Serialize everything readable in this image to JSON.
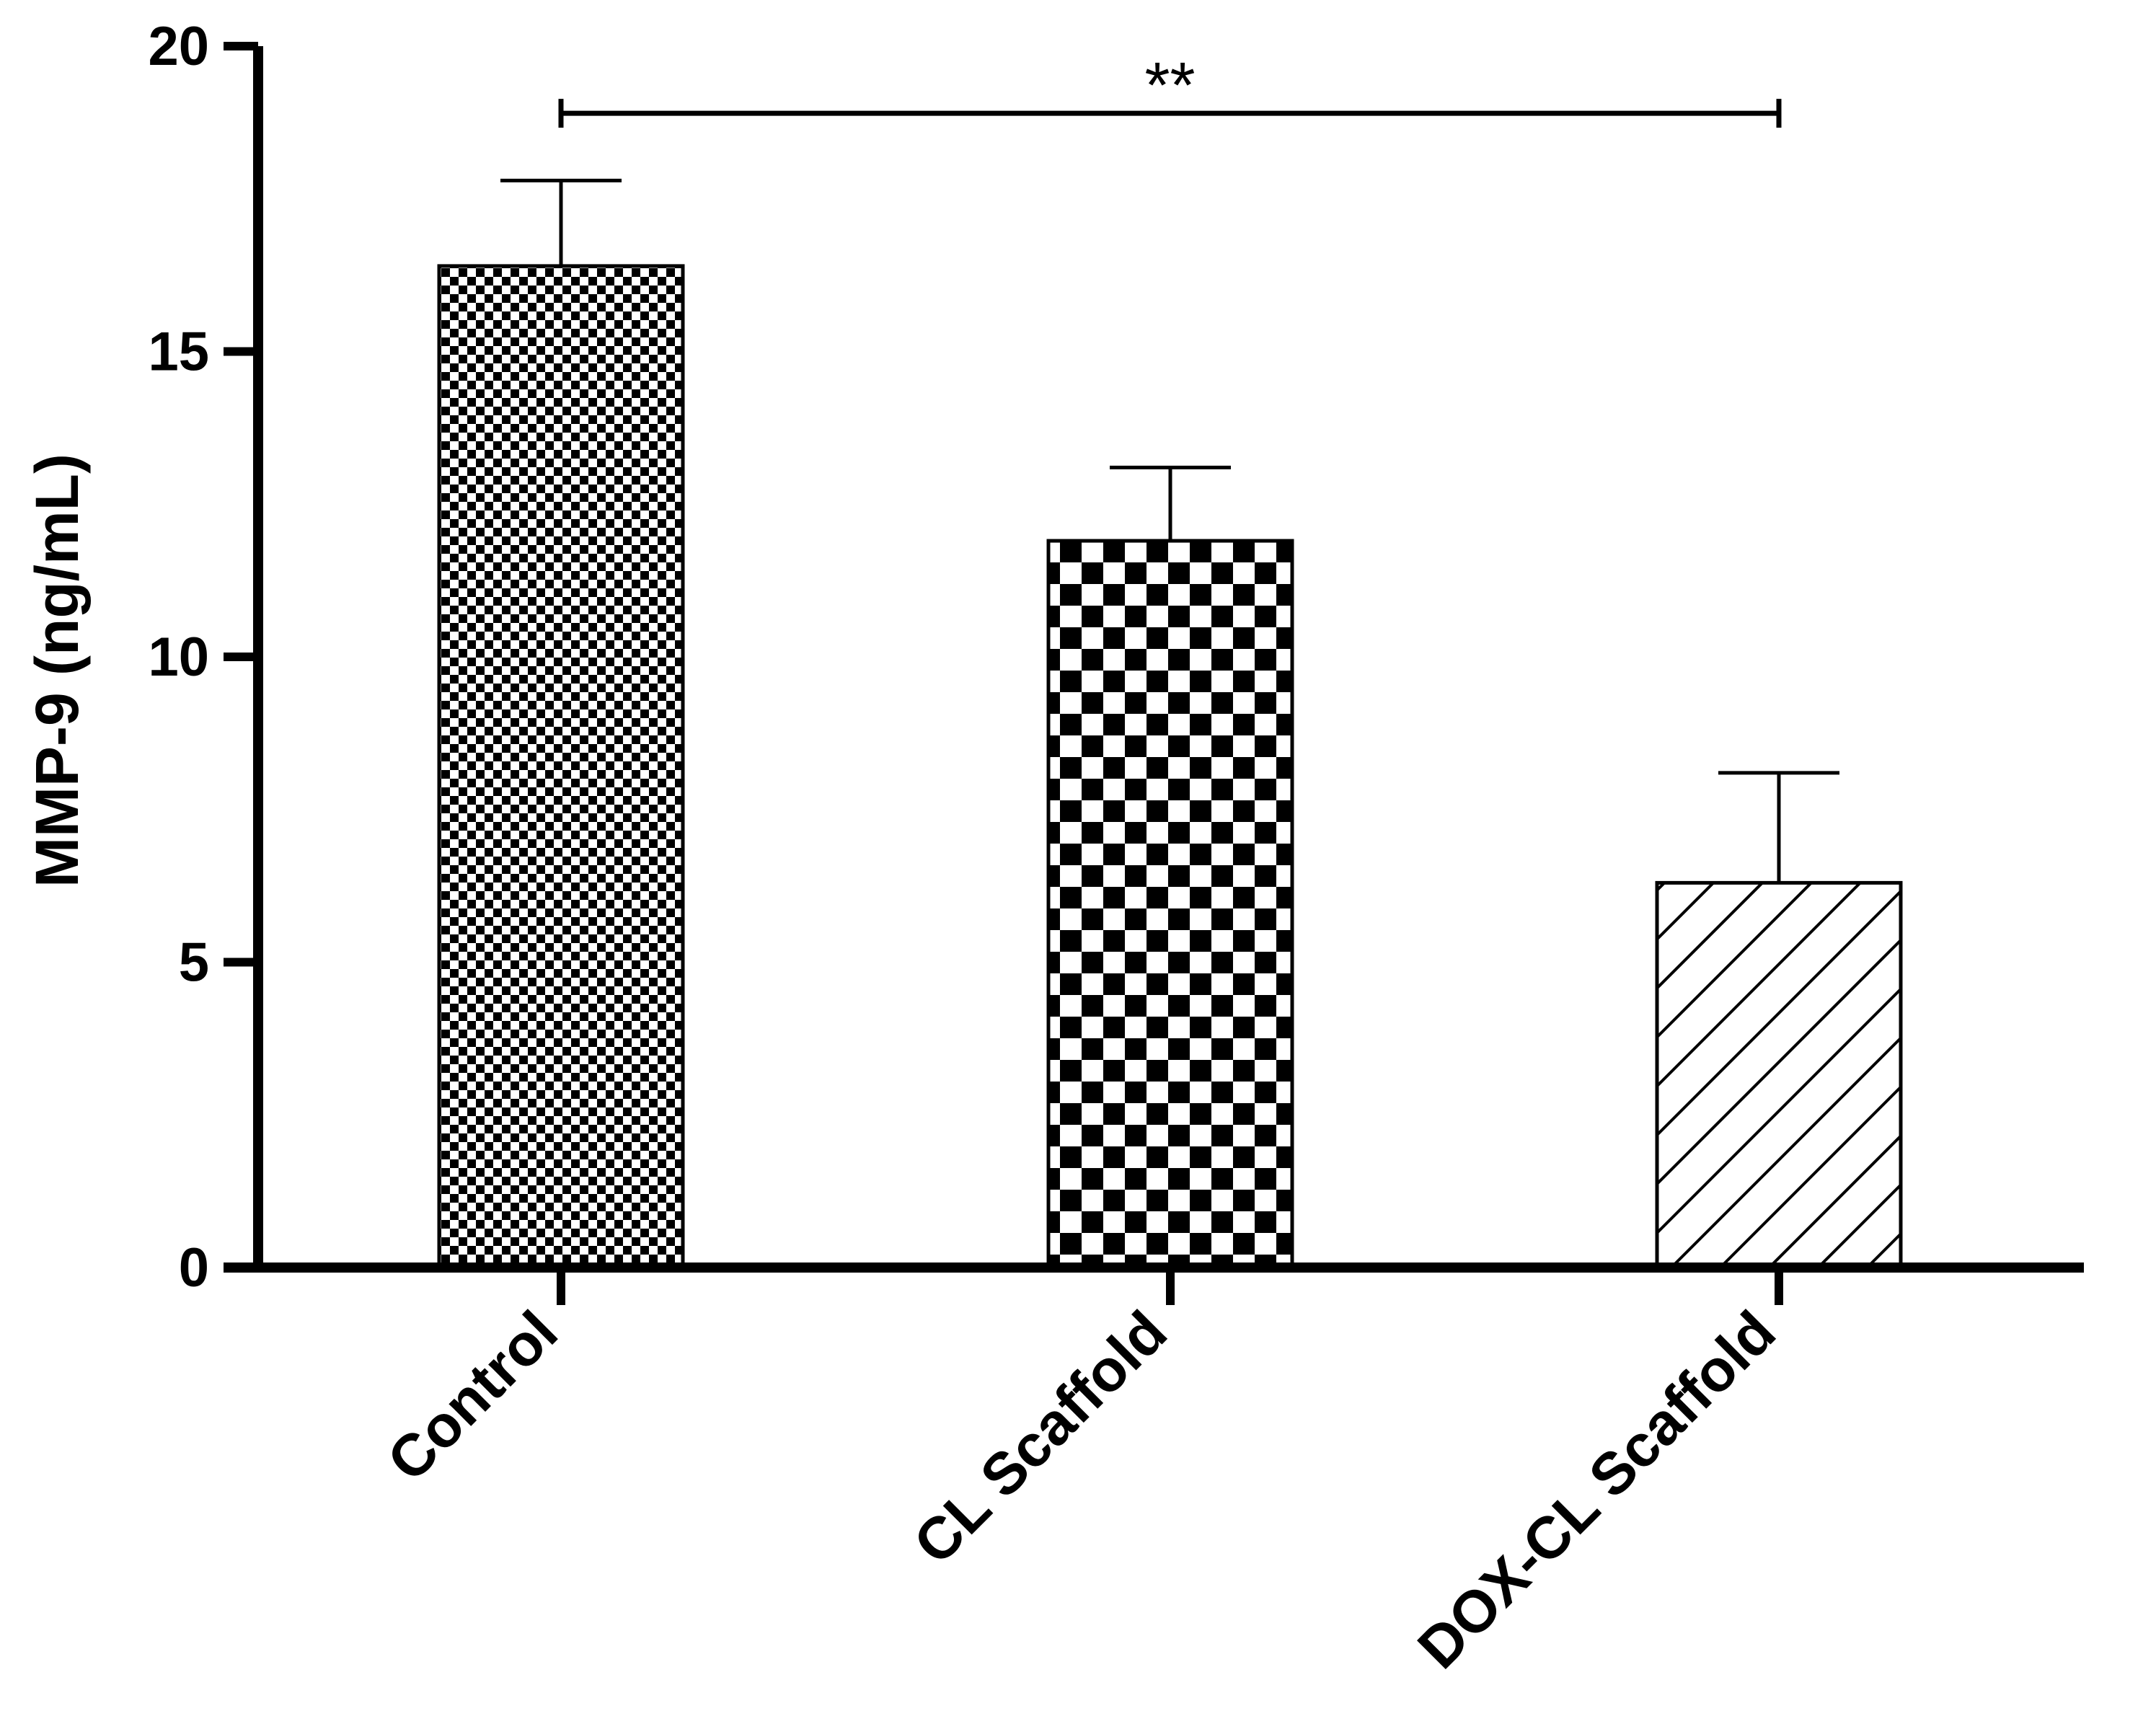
{
  "chart_data": {
    "type": "bar",
    "title": "",
    "xlabel": "",
    "ylabel": "MMP-9 (ng/mL)",
    "ylim": [
      0,
      20
    ],
    "yticks": [
      0,
      5,
      10,
      15,
      20
    ],
    "grid": false,
    "categories": [
      "Control",
      "CL Scaffold",
      "DOX-CL Scaffold"
    ],
    "values": [
      16.4,
      11.9,
      6.3
    ],
    "errors": [
      1.4,
      1.2,
      1.8
    ],
    "fill_patterns": [
      "fine-checker",
      "coarse-checker",
      "diagonal-hatch"
    ],
    "significance": [
      {
        "from": "Control",
        "to": "DOX-CL Scaffold",
        "label": "**",
        "y": 18.9
      }
    ]
  },
  "colors": {
    "ink": "#000000",
    "background": "#ffffff"
  }
}
